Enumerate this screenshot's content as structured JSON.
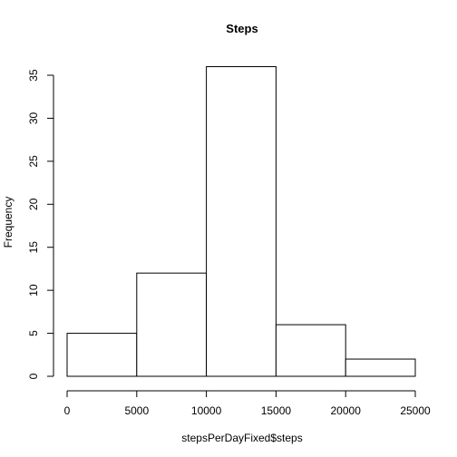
{
  "chart_data": {
    "type": "bar",
    "title": "Steps",
    "xlabel": "stepsPerDayFixed$steps",
    "ylabel": "Frequency",
    "bins": [
      {
        "x0": 0,
        "x1": 5000,
        "count": 5
      },
      {
        "x0": 5000,
        "x1": 10000,
        "count": 12
      },
      {
        "x0": 10000,
        "x1": 15000,
        "count": 36
      },
      {
        "x0": 15000,
        "x1": 20000,
        "count": 6
      },
      {
        "x0": 20000,
        "x1": 25000,
        "count": 2
      }
    ],
    "xlim": [
      0,
      25000
    ],
    "ylim": [
      0,
      35
    ],
    "x_ticks": [
      0,
      5000,
      10000,
      15000,
      20000,
      25000
    ],
    "y_ticks": [
      0,
      5,
      10,
      15,
      20,
      25,
      30,
      35
    ],
    "grid": false,
    "colors": {
      "bar_fill": "#ffffff",
      "bar_stroke": "#000000"
    }
  }
}
